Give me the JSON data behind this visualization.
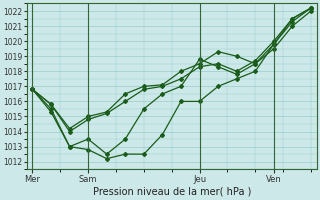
{
  "title": "",
  "xlabel": "Pression niveau de la mer( hPa )",
  "ylabel": "",
  "bg_color": "#cce8e8",
  "grid_color": "#99cccc",
  "line_color": "#1a5c1a",
  "ylim": [
    1011.5,
    1022.5
  ],
  "yticks": [
    1012,
    1013,
    1014,
    1015,
    1016,
    1017,
    1018,
    1019,
    1020,
    1021,
    1022
  ],
  "xtick_labels": [
    "Mer",
    "Sam",
    "Jeu",
    "Ven"
  ],
  "series": [
    {
      "x": [
        0,
        1,
        2,
        3,
        4,
        5,
        6,
        7,
        8,
        9,
        10,
        11,
        12,
        13,
        14,
        15
      ],
      "y": [
        1016.8,
        1015.8,
        1014.2,
        1015.0,
        1015.3,
        1016.5,
        1017.0,
        1017.1,
        1018.0,
        1018.5,
        1019.3,
        1019.0,
        1018.5,
        1019.8,
        1021.3,
        1022.2
      ]
    },
    {
      "x": [
        0,
        1,
        2,
        3,
        4,
        5,
        6,
        7,
        8,
        9,
        10,
        11,
        12,
        13,
        14,
        15
      ],
      "y": [
        1016.8,
        1015.8,
        1014.0,
        1014.8,
        1015.2,
        1016.0,
        1016.8,
        1017.0,
        1017.5,
        1018.3,
        1018.5,
        1018.0,
        1018.7,
        1020.0,
        1021.5,
        1022.2
      ]
    },
    {
      "x": [
        0,
        1,
        2,
        3,
        4,
        5,
        6,
        7,
        8,
        9,
        10,
        11,
        12,
        13,
        14,
        15
      ],
      "y": [
        1016.8,
        1015.5,
        1013.0,
        1013.5,
        1012.5,
        1013.5,
        1015.5,
        1016.5,
        1017.0,
        1018.8,
        1018.3,
        1017.8,
        1018.5,
        1019.5,
        1021.0,
        1022.0
      ]
    },
    {
      "x": [
        0,
        1,
        2,
        3,
        4,
        5,
        6,
        7,
        8,
        9,
        10,
        11,
        12,
        13,
        14,
        15
      ],
      "y": [
        1016.8,
        1015.3,
        1013.0,
        1012.8,
        1012.2,
        1012.5,
        1012.5,
        1013.8,
        1016.0,
        1016.0,
        1017.0,
        1017.5,
        1018.0,
        1019.8,
        1021.5,
        1022.2
      ]
    }
  ],
  "xtick_x": [
    0,
    3,
    9,
    13
  ],
  "vline_x": [
    0,
    3,
    9,
    13
  ],
  "x_min": -0.3,
  "x_max": 15.3,
  "num_minor_grids": 20
}
